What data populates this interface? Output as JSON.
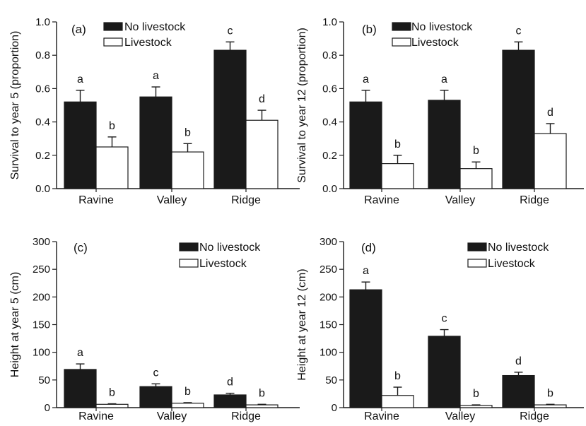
{
  "colors": {
    "no_livestock": "#1a1a1a",
    "livestock": "#ffffff",
    "stroke": "#1a1a1a"
  },
  "chart_data": [
    {
      "type": "bar",
      "panel": "(a)",
      "ylabel": "Survival to year 5 (proportion)",
      "ylim": [
        0,
        1.0
      ],
      "yticks": [
        "0.0",
        "0.2",
        "0.4",
        "0.6",
        "0.8",
        "1.0"
      ],
      "categories": [
        "Ravine",
        "Valley",
        "Ridge"
      ],
      "legend_position": "top-center",
      "series": [
        {
          "name": "No livestock",
          "values": [
            0.52,
            0.55,
            0.83
          ],
          "errors": [
            0.07,
            0.06,
            0.05
          ],
          "labels": [
            "a",
            "a",
            "c"
          ]
        },
        {
          "name": "Livestock",
          "values": [
            0.25,
            0.22,
            0.41
          ],
          "errors": [
            0.06,
            0.05,
            0.06
          ],
          "labels": [
            "b",
            "b",
            "d"
          ]
        }
      ]
    },
    {
      "type": "bar",
      "panel": "(b)",
      "ylabel": "Survival to year 12 (proportion)",
      "ylim": [
        0,
        1.0
      ],
      "yticks": [
        "0.0",
        "0.2",
        "0.4",
        "0.6",
        "0.8",
        "1.0"
      ],
      "categories": [
        "Ravine",
        "Valley",
        "Ridge"
      ],
      "legend_position": "top-center",
      "series": [
        {
          "name": "No livestock",
          "values": [
            0.52,
            0.53,
            0.83
          ],
          "errors": [
            0.07,
            0.06,
            0.05
          ],
          "labels": [
            "a",
            "a",
            "c"
          ]
        },
        {
          "name": "Livestock",
          "values": [
            0.15,
            0.12,
            0.33
          ],
          "errors": [
            0.05,
            0.04,
            0.06
          ],
          "labels": [
            "b",
            "b",
            "d"
          ]
        }
      ]
    },
    {
      "type": "bar",
      "panel": "(c)",
      "ylabel": "Height at year 5 (cm)",
      "ylim": [
        0,
        300
      ],
      "yticks": [
        "0",
        "50",
        "100",
        "150",
        "200",
        "250",
        "300"
      ],
      "categories": [
        "Ravine",
        "Valley",
        "Ridge"
      ],
      "legend_position": "top-right",
      "series": [
        {
          "name": "No livestock",
          "values": [
            69,
            38,
            23
          ],
          "errors": [
            10,
            5,
            3
          ],
          "labels": [
            "a",
            "c",
            "d"
          ]
        },
        {
          "name": "Livestock",
          "values": [
            6,
            8,
            5
          ],
          "errors": [
            1,
            1,
            1
          ],
          "labels": [
            "b",
            "b",
            "b"
          ]
        }
      ]
    },
    {
      "type": "bar",
      "panel": "(d)",
      "ylabel": "Height at year 12 (cm)",
      "ylim": [
        0,
        300
      ],
      "yticks": [
        "0",
        "50",
        "100",
        "150",
        "200",
        "250",
        "300"
      ],
      "categories": [
        "Ravine",
        "Valley",
        "Ridge"
      ],
      "legend_position": "top-right",
      "series": [
        {
          "name": "No livestock",
          "values": [
            213,
            129,
            58
          ],
          "errors": [
            14,
            12,
            6
          ],
          "labels": [
            "a",
            "c",
            "d"
          ]
        },
        {
          "name": "Livestock",
          "values": [
            22,
            4,
            5
          ],
          "errors": [
            15,
            1,
            1
          ],
          "labels": [
            "b",
            "b",
            "b"
          ]
        }
      ]
    }
  ]
}
